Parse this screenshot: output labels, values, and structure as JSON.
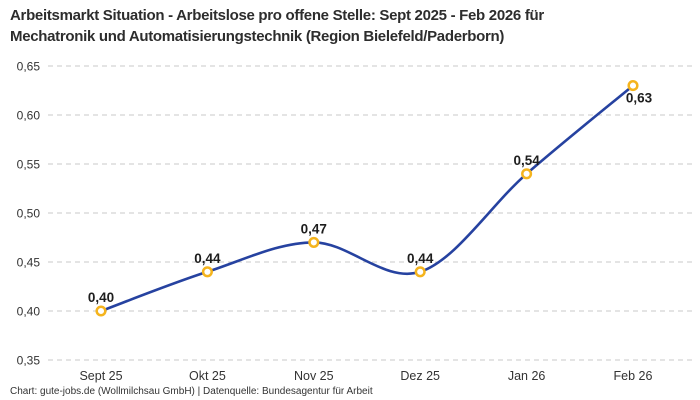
{
  "header": {
    "title_line1": "Arbeitsmarkt Situation - Arbeitslose pro offene Stelle: Sept 2025 - Feb 2026 für",
    "title_line2": "Mechatronik und Automatisierungstechnik (Region Bielefeld/Paderborn)"
  },
  "footer": {
    "attribution": "Chart: gute-jobs.de (Wollmilchsau GmbH) | Datenquelle: Bundesagentur für Arbeit"
  },
  "chart_data": {
    "type": "line",
    "title": "Arbeitsmarkt Situation - Arbeitslose pro offene Stelle: Sept 2025 - Feb 2026 für Mechatronik und Automatisierungstechnik (Region Bielefeld/Paderborn)",
    "categories": [
      "Sept 25",
      "Okt 25",
      "Nov 25",
      "Dez 25",
      "Jan 26",
      "Feb 26"
    ],
    "values": [
      0.4,
      0.44,
      0.47,
      0.44,
      0.54,
      0.63
    ],
    "point_labels": [
      "0,40",
      "0,44",
      "0,47",
      "0,44",
      "0,54",
      "0,63"
    ],
    "label_positions": [
      "above",
      "above",
      "above",
      "above",
      "above",
      "below-right"
    ],
    "ylim": [
      0.35,
      0.65
    ],
    "ytick_values": [
      0.65,
      0.6,
      0.55,
      0.5,
      0.45,
      0.4,
      0.35
    ],
    "ytick_labels": [
      "0,65",
      "0,60",
      "0,55",
      "0,50",
      "0,45",
      "0,40",
      "0,35"
    ],
    "xlabel": "",
    "ylabel": "",
    "legend": "none",
    "grid": "dashed-horizontal",
    "curve": "smooth",
    "colors": {
      "line": "#2642a0",
      "marker_ring": "#f5b41d",
      "marker_fill": "#ffffff",
      "grid": "#c9c9c9",
      "tick_text": "#333333",
      "point_label_text": "#1d1d1d"
    }
  }
}
